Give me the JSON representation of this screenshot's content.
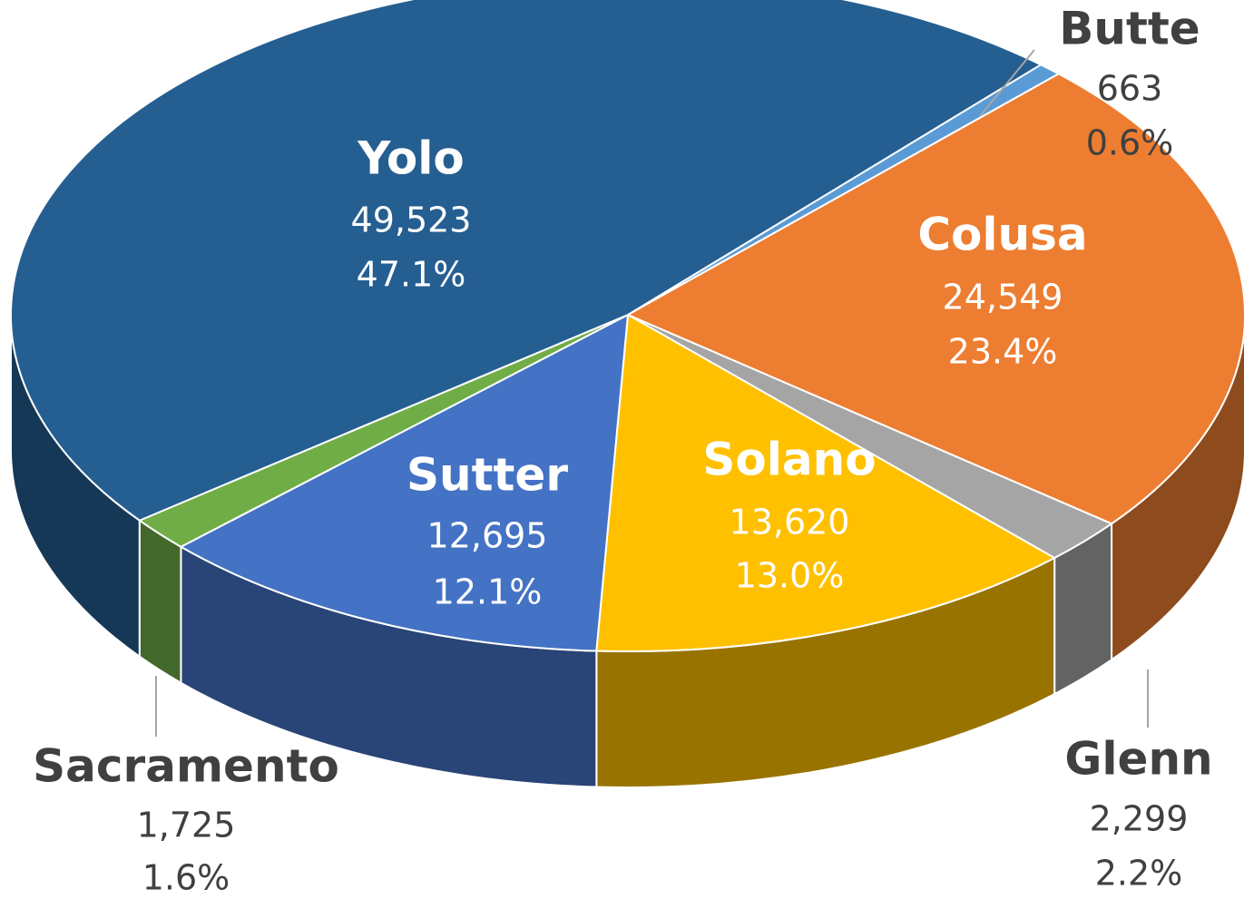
{
  "chart_data": {
    "type": "pie3d",
    "categories": [
      "Butte",
      "Colusa",
      "Glenn",
      "Solano",
      "Sutter",
      "Sacramento",
      "Yolo"
    ],
    "values": [
      663,
      24549,
      2299,
      13620,
      12695,
      1725,
      49523
    ],
    "value_labels": [
      "663",
      "24,549",
      "2,299",
      "13,620",
      "12,695",
      "1,725",
      "49,523"
    ],
    "percents": [
      0.6,
      23.4,
      2.2,
      13.0,
      12.1,
      1.6,
      47.1
    ],
    "percent_labels": [
      "0.6%",
      "23.4%",
      "2.2%",
      "13.0%",
      "12.1%",
      "1.6%",
      "47.1%"
    ],
    "colors": [
      "#5B9BD5",
      "#ED7D31",
      "#A5A5A5",
      "#FFC000",
      "#4472C4",
      "#70AD47",
      "#255E91"
    ]
  }
}
